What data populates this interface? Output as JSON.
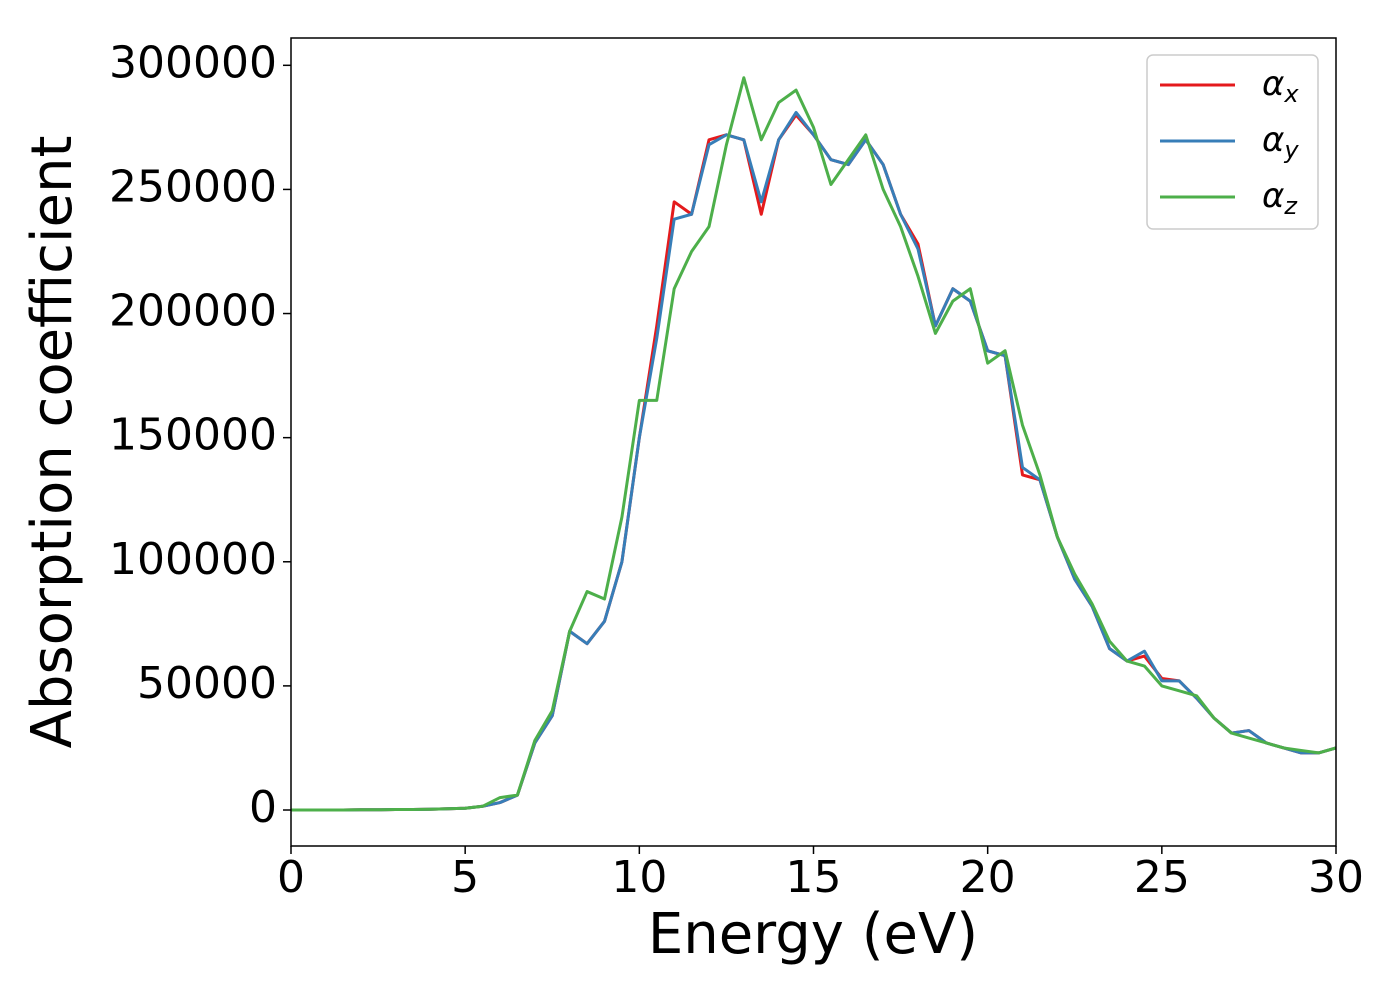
{
  "chart_data": {
    "type": "line",
    "xlabel": "Energy (eV)",
    "ylabel": "Absorption coefficient",
    "x": [
      0,
      0.5,
      1,
      1.5,
      2,
      2.5,
      3,
      3.5,
      4,
      4.5,
      5,
      5.5,
      6,
      6.5,
      7,
      7.5,
      8,
      8.5,
      9,
      9.5,
      10,
      10.5,
      11,
      11.5,
      12,
      12.5,
      13,
      13.5,
      14,
      14.5,
      15,
      15.5,
      16,
      16.5,
      17,
      17.5,
      18,
      18.5,
      19,
      19.5,
      20,
      20.5,
      21,
      21.5,
      22,
      22.5,
      23,
      23.5,
      24,
      24.5,
      25,
      25.5,
      26,
      26.5,
      27,
      27.5,
      28,
      28.5,
      29,
      29.5,
      30
    ],
    "series": [
      {
        "name": "αx",
        "color": "#e41a1c",
        "values": [
          0,
          0,
          0,
          0,
          100,
          100,
          200,
          200,
          300,
          500,
          700,
          1500,
          3000,
          6000,
          27000,
          38000,
          72000,
          67000,
          76000,
          100000,
          150000,
          195000,
          245000,
          240000,
          270000,
          272000,
          270000,
          240000,
          270000,
          280000,
          272000,
          262000,
          260000,
          270000,
          260000,
          240000,
          228000,
          195000,
          210000,
          205000,
          185000,
          183000,
          135000,
          133000,
          110000,
          93000,
          82000,
          65000,
          60000,
          62000,
          53000,
          52000,
          45000,
          37000,
          31000,
          32000,
          27000,
          25000,
          23000,
          23000,
          25000
        ]
      },
      {
        "name": "αy",
        "color": "#377eb8",
        "values": [
          0,
          0,
          0,
          0,
          100,
          100,
          200,
          200,
          300,
          500,
          700,
          1500,
          3000,
          6000,
          27000,
          38000,
          72000,
          67000,
          76000,
          100000,
          150000,
          190000,
          238000,
          240000,
          268000,
          272000,
          270000,
          245000,
          270000,
          281000,
          272000,
          262000,
          260000,
          270000,
          260000,
          240000,
          226000,
          195000,
          210000,
          205000,
          185000,
          183000,
          138000,
          133000,
          110000,
          93000,
          82000,
          65000,
          60000,
          64000,
          52000,
          52000,
          45000,
          37000,
          31000,
          32000,
          27000,
          25000,
          23000,
          23000,
          25000
        ]
      },
      {
        "name": "αz",
        "color": "#4daf4a",
        "values": [
          0,
          0,
          0,
          0,
          100,
          100,
          200,
          200,
          300,
          500,
          700,
          1500,
          5000,
          6000,
          28000,
          40000,
          72000,
          88000,
          85000,
          118000,
          165000,
          165000,
          210000,
          225000,
          235000,
          268000,
          295000,
          270000,
          285000,
          290000,
          275000,
          252000,
          262000,
          272000,
          250000,
          235000,
          215000,
          192000,
          205000,
          210000,
          180000,
          185000,
          155000,
          135000,
          110000,
          95000,
          83000,
          68000,
          60000,
          58000,
          50000,
          48000,
          46000,
          37000,
          31000,
          29000,
          27000,
          25000,
          24000,
          23000,
          25000
        ]
      }
    ],
    "xlim": [
      0,
      30
    ],
    "xticks": [
      0,
      5,
      10,
      15,
      20,
      25,
      30
    ],
    "ylim": [
      -14500,
      311000
    ],
    "yticks": [
      0,
      50000,
      100000,
      150000,
      200000,
      250000,
      300000
    ],
    "legend": "upper right",
    "grid": false
  }
}
